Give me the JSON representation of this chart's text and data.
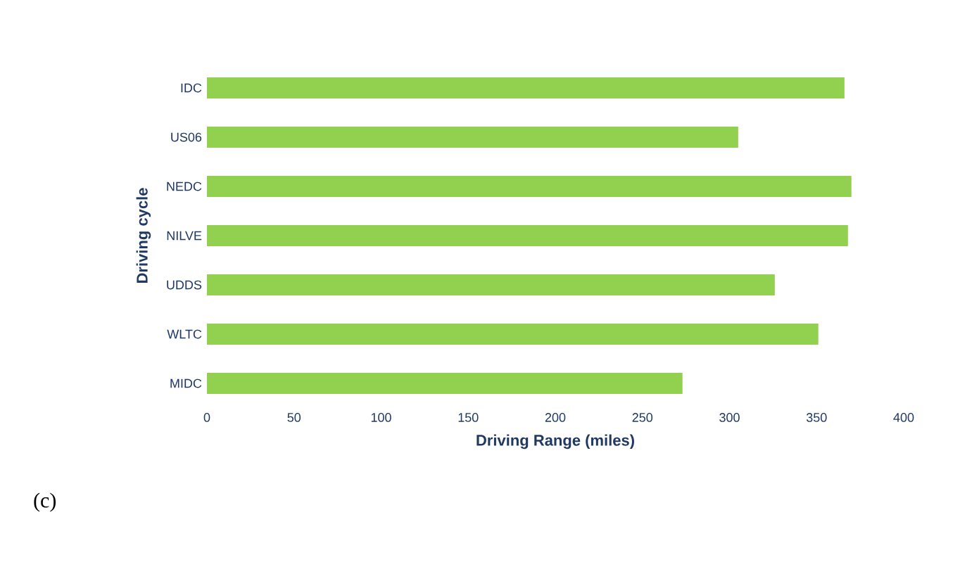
{
  "chart_data": {
    "type": "bar",
    "orientation": "horizontal",
    "categories": [
      "IDC",
      "US06",
      "NEDC",
      "NILVE",
      "UDDS",
      "WLTC",
      "MIDC"
    ],
    "values": [
      366,
      305,
      370,
      368,
      326,
      351,
      273
    ],
    "color": "#92d050",
    "xlabel": "Driving Range (miles)",
    "ylabel": "Driving cycle",
    "xlim": [
      0,
      400
    ],
    "xticks": [
      0,
      50,
      100,
      150,
      200,
      250,
      300,
      350,
      400
    ],
    "annotations": [
      "(c)"
    ]
  }
}
